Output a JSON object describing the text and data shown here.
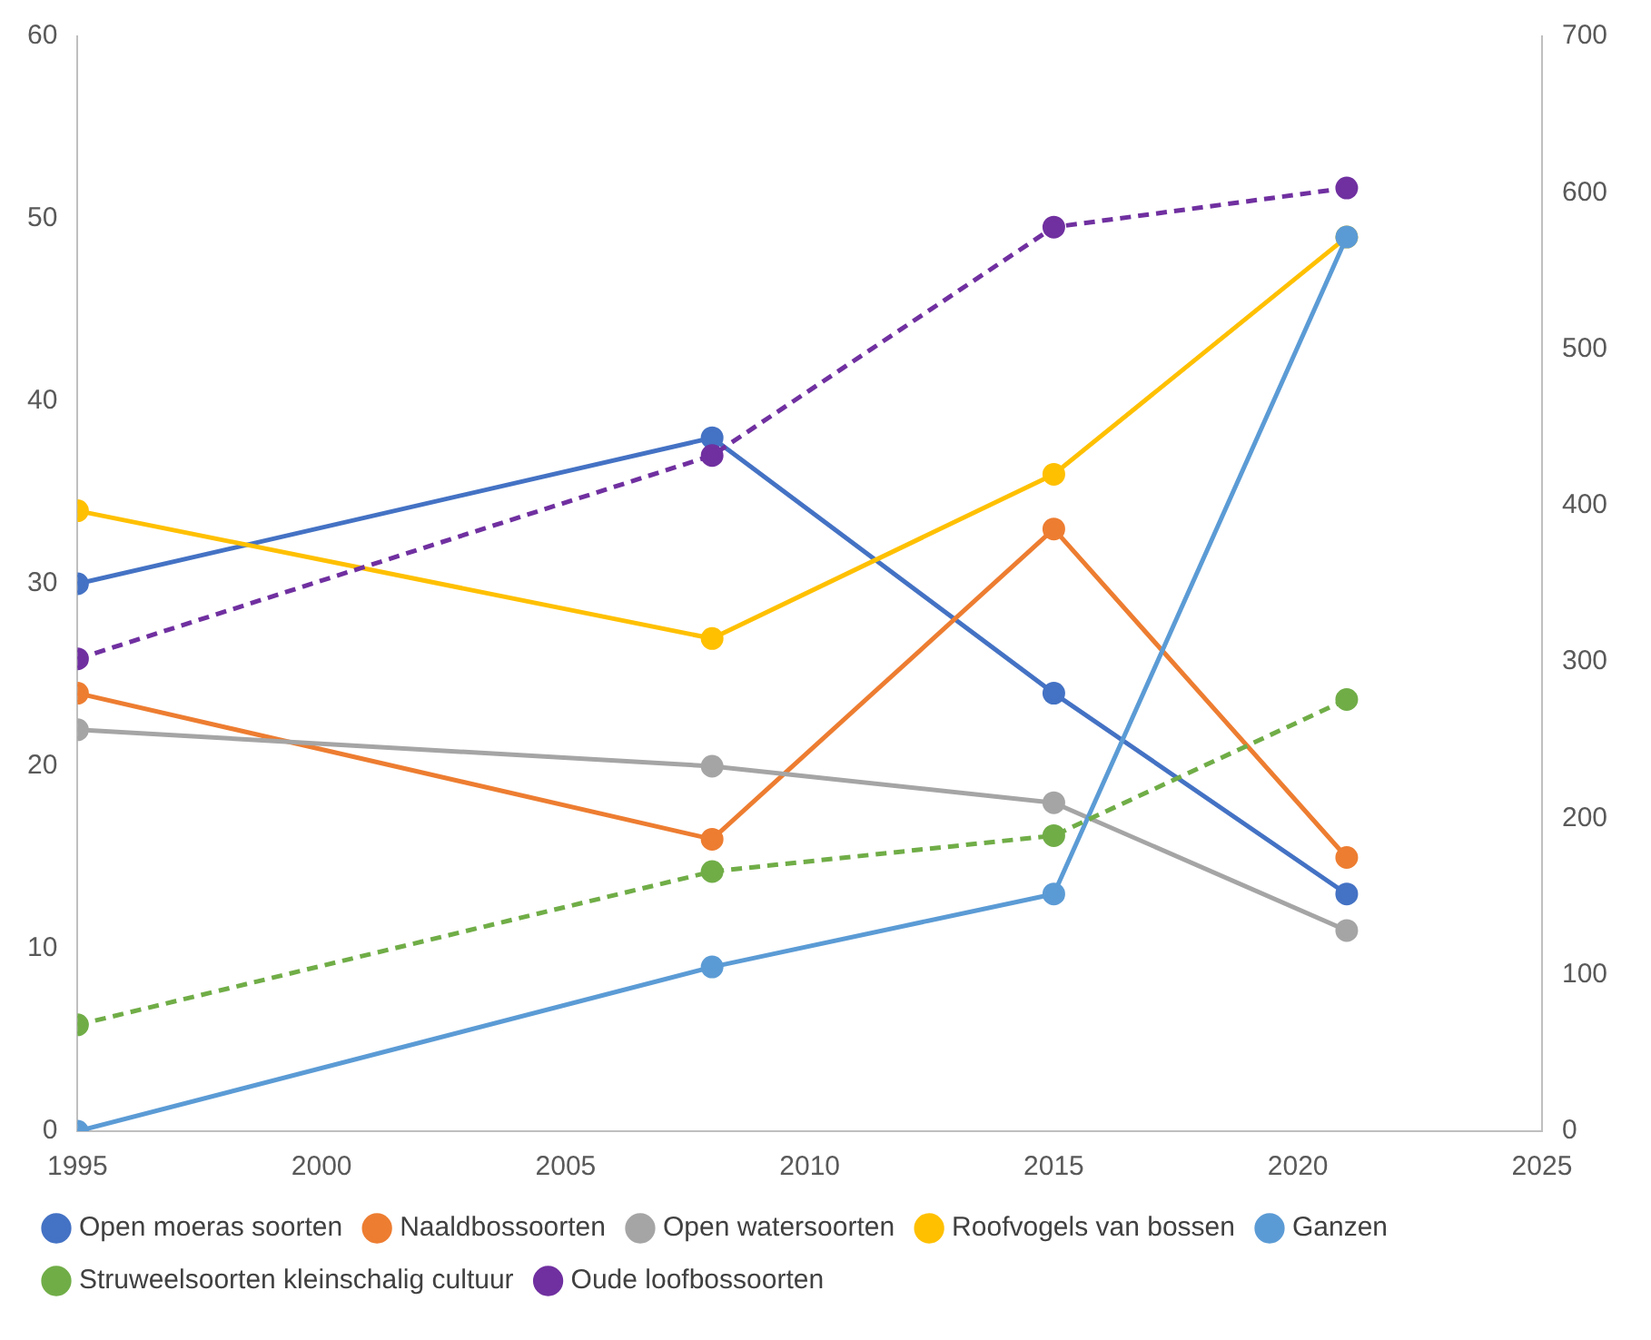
{
  "chart_data": {
    "type": "line",
    "x": [
      1995,
      2008,
      2015,
      2021
    ],
    "xlim": [
      1995,
      2025
    ],
    "xticks": [
      1995,
      2000,
      2005,
      2010,
      2015,
      2020,
      2025
    ],
    "ylim": [
      0,
      60
    ],
    "yticks": [
      0,
      10,
      20,
      30,
      40,
      50,
      60
    ],
    "y2lim": [
      0,
      700
    ],
    "y2ticks": [
      0,
      100,
      200,
      300,
      400,
      500,
      600,
      700
    ],
    "grid": false,
    "legend": "bottom",
    "marker": "circle",
    "series": [
      {
        "name": "Open moeras soorten",
        "color": "#4472c4",
        "values": [
          30,
          38,
          24,
          13
        ]
      },
      {
        "name": "Naaldbossoorten",
        "color": "#ed7d31",
        "values": [
          24,
          16,
          33,
          15
        ]
      },
      {
        "name": "Open watersoorten",
        "color": "#a5a5a5",
        "values": [
          22,
          20,
          18,
          11
        ]
      },
      {
        "name": "Roofvogels van bossen",
        "color": "#ffc000",
        "values": [
          34,
          27,
          36,
          49
        ]
      },
      {
        "name": "Ganzen",
        "color": "#5b9bd5",
        "values": [
          0,
          9,
          13,
          49
        ]
      },
      {
        "name": "Struweelsoorten kleinschalig cultuur",
        "color": "#70ad47",
        "values": [
          68,
          166,
          189,
          276
        ],
        "axis": "y2",
        "line_style": "dashed"
      },
      {
        "name": "Oude loofbossoorten",
        "color": "#7030a0",
        "values": [
          302,
          432,
          578,
          603
        ],
        "axis": "y2",
        "line_style": "dashed"
      }
    ]
  }
}
